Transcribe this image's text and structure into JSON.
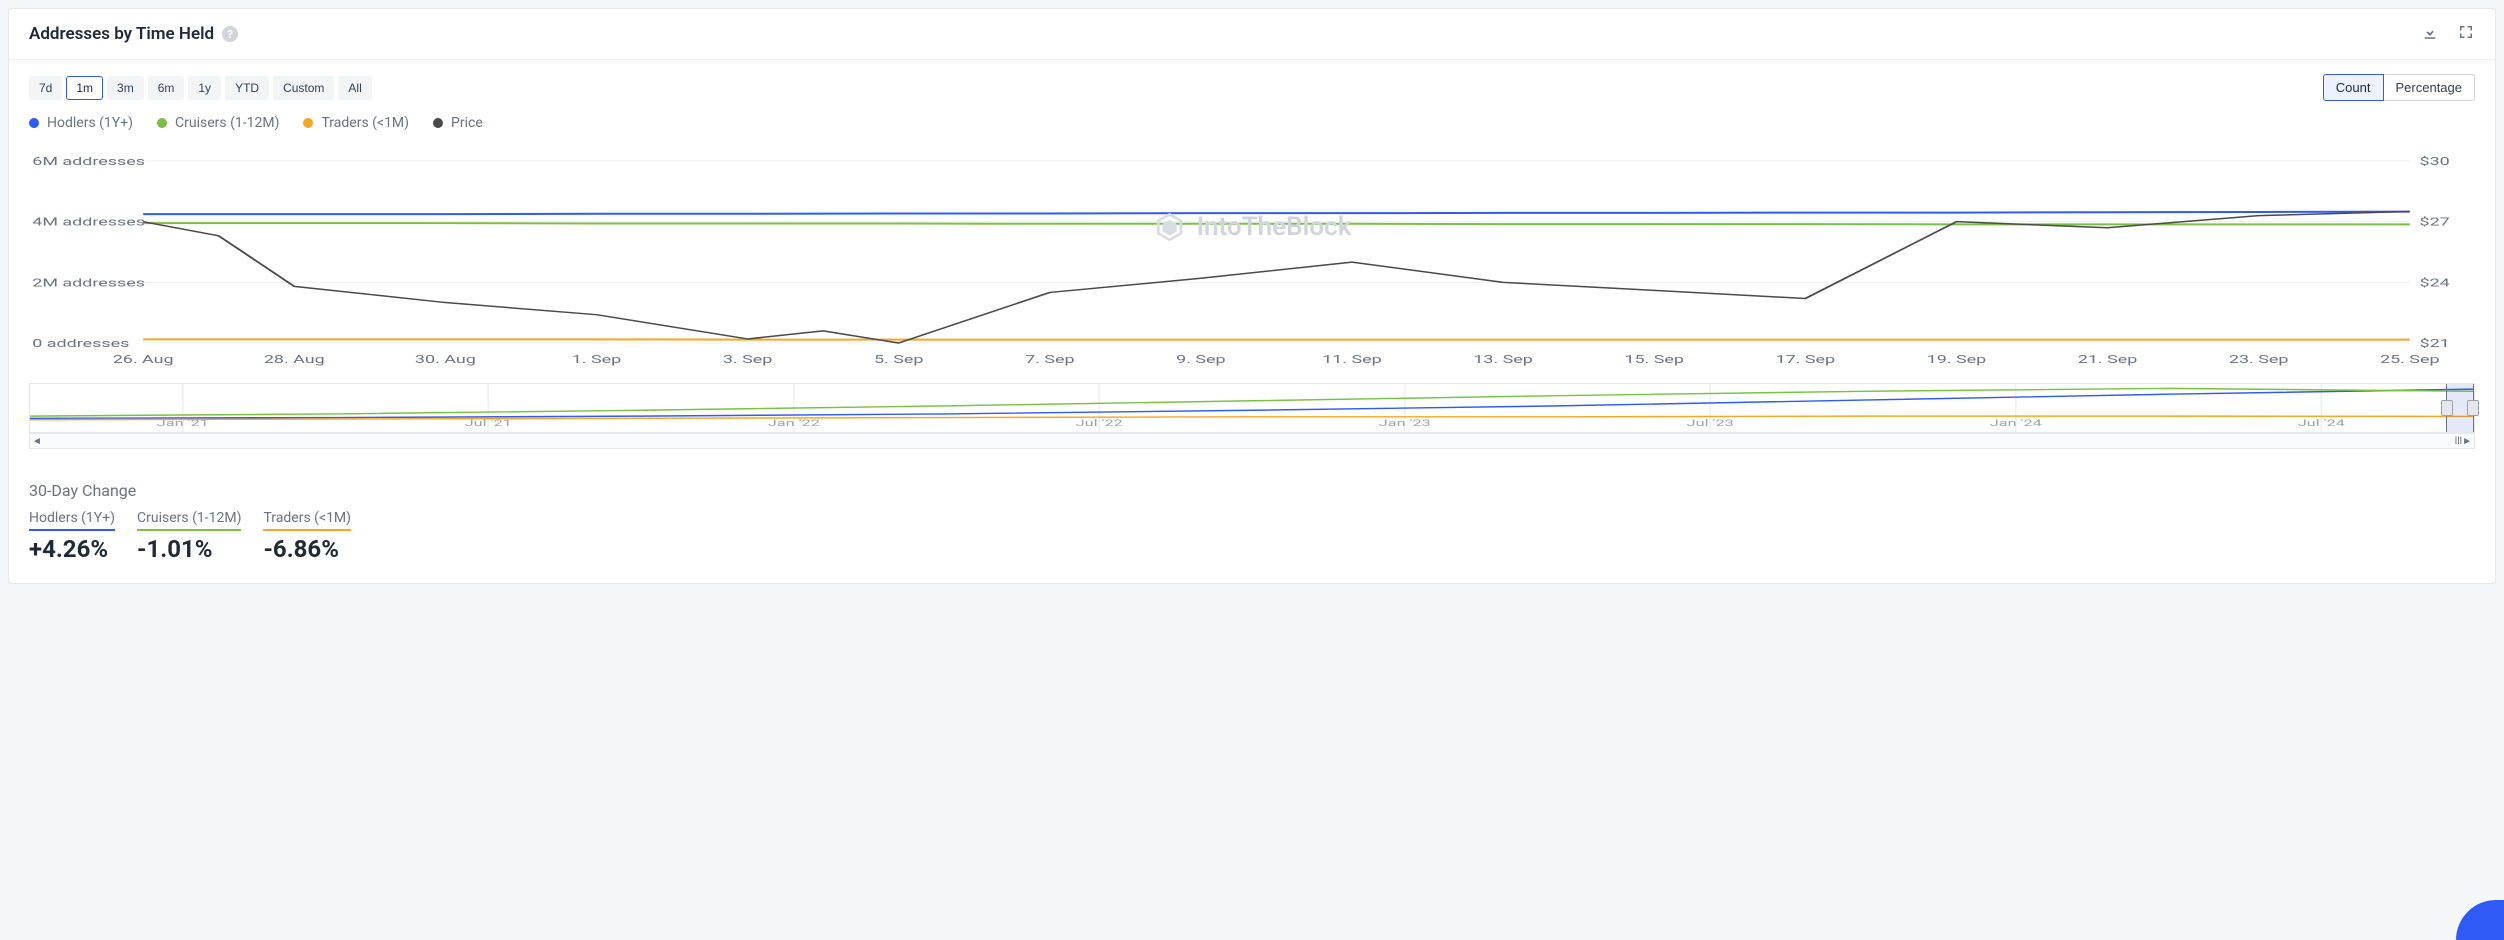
{
  "header": {
    "title": "Addresses by Time Held",
    "help_tooltip": "?"
  },
  "ranges": {
    "items": [
      "7d",
      "1m",
      "3m",
      "6m",
      "1y",
      "YTD",
      "Custom",
      "All"
    ],
    "active_index": 1
  },
  "views": {
    "items": [
      "Count",
      "Percentage"
    ],
    "active_index": 0
  },
  "legend": {
    "items": [
      {
        "label": "Hodlers (1Y+)",
        "color": "#2f5af5"
      },
      {
        "label": "Cruisers (1-12M)",
        "color": "#7bc043"
      },
      {
        "label": "Traders (<1M)",
        "color": "#f5a623"
      },
      {
        "label": "Price",
        "color": "#4a4a4a"
      }
    ]
  },
  "watermark": "IntoTheBlock",
  "chart": {
    "type": "line",
    "x_labels": [
      "26. Aug",
      "28. Aug",
      "30. Aug",
      "1. Sep",
      "3. Sep",
      "5. Sep",
      "7. Sep",
      "9. Sep",
      "11. Sep",
      "13. Sep",
      "15. Sep",
      "17. Sep",
      "19. Sep",
      "21. Sep",
      "23. Sep",
      "25. Sep"
    ],
    "left_axis": {
      "ticks": [
        "6M addresses",
        "4M addresses",
        "2M addresses",
        "0 addresses"
      ],
      "tick_values": [
        6,
        4,
        2,
        0
      ],
      "min": 0,
      "max": 6
    },
    "right_axis": {
      "ticks": [
        "$30",
        "$27",
        "$24",
        "$21"
      ],
      "tick_values": [
        30,
        27,
        24,
        21
      ],
      "min": 21,
      "max": 30
    },
    "grid_color": "#eef0f4",
    "series": {
      "hodlers": {
        "axis": "left",
        "color": "#2f5af5",
        "width": 2,
        "values": [
          4.25,
          4.25,
          4.25,
          4.26,
          4.26,
          4.27,
          4.27,
          4.28,
          4.28,
          4.29,
          4.29,
          4.3,
          4.3,
          4.31,
          4.32,
          4.33
        ]
      },
      "cruisers": {
        "axis": "left",
        "color": "#7bc043",
        "width": 2,
        "values": [
          3.95,
          3.95,
          3.95,
          3.94,
          3.94,
          3.94,
          3.93,
          3.93,
          3.93,
          3.92,
          3.92,
          3.92,
          3.91,
          3.91,
          3.91,
          3.91
        ]
      },
      "traders": {
        "axis": "left",
        "color": "#f5a623",
        "width": 2,
        "values": [
          0.12,
          0.12,
          0.12,
          0.12,
          0.11,
          0.11,
          0.11,
          0.11,
          0.11,
          0.11,
          0.11,
          0.11,
          0.11,
          0.11,
          0.11,
          0.11
        ]
      },
      "price": {
        "axis": "right",
        "color": "#4a4a4a",
        "width": 1.5,
        "values": [
          27.0,
          26.3,
          23.8,
          23.0,
          22.4,
          21.2,
          21.6,
          21.0,
          23.5,
          24.2,
          25.0,
          24.0,
          23.6,
          23.2,
          27.0,
          26.7,
          27.3,
          27.5
        ],
        "x_fine": [
          0,
          0.5,
          1,
          2,
          3,
          4,
          4.5,
          5,
          6,
          7,
          8,
          9,
          10,
          11,
          12,
          13,
          14,
          15
        ]
      }
    },
    "background_color": "#ffffff",
    "axis_text_color": "#6b7280",
    "axis_fontsize": 11
  },
  "navigator": {
    "x_labels": [
      "Jan '21",
      "Jul '21",
      "Jan '22",
      "Jul '22",
      "Jan '23",
      "Jul '23",
      "Jan '24",
      "Jul '24"
    ],
    "series": {
      "hodlers": {
        "color": "#2f5af5",
        "values": [
          0.3,
          0.4,
          0.6,
          0.9,
          1.4,
          2.0,
          2.8,
          3.6,
          4.3
        ]
      },
      "cruisers": {
        "color": "#7bc043",
        "values": [
          0.6,
          0.9,
          1.4,
          2.0,
          2.7,
          3.4,
          4.0,
          4.4,
          4.0
        ]
      },
      "traders": {
        "color": "#f5a623",
        "values": [
          0.1,
          0.2,
          0.3,
          0.4,
          0.5,
          0.5,
          0.6,
          0.6,
          0.55
        ]
      }
    },
    "ymax": 5
  },
  "summary": {
    "title": "30-Day Change",
    "items": [
      {
        "key": "hodlers",
        "label": "Hodlers (1Y+)",
        "value": "+4.26%",
        "underline": "#2f5af5"
      },
      {
        "key": "cruisers",
        "label": "Cruisers (1-12M)",
        "value": "-1.01%",
        "underline": "#7bc043"
      },
      {
        "key": "traders",
        "label": "Traders (<1M)",
        "value": "-6.86%",
        "underline": "#f5a623"
      }
    ]
  }
}
